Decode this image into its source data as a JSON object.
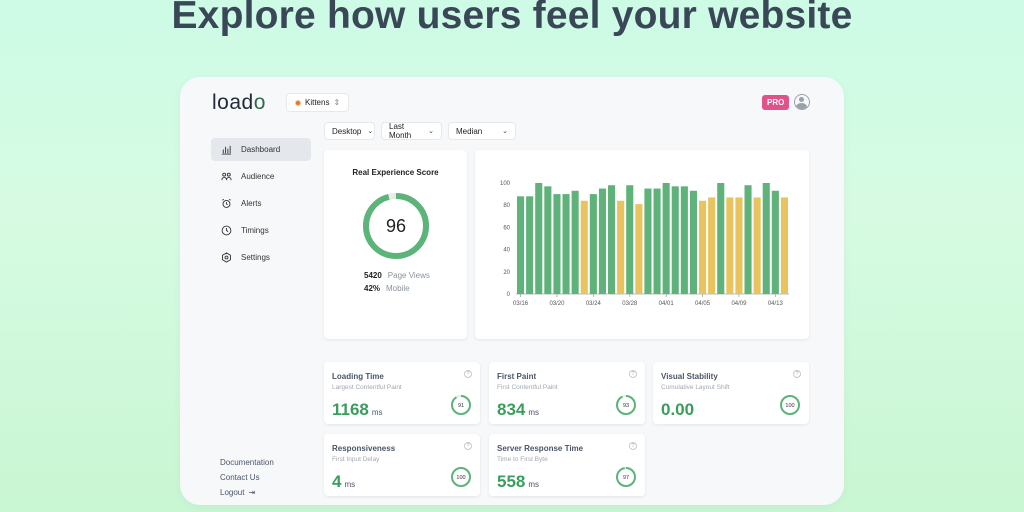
{
  "hero": {
    "title": "Explore how users feel your website"
  },
  "logo": {
    "text_a": "load",
    "text_b": "o"
  },
  "site": {
    "name": "Kittens"
  },
  "badge": {
    "pro": "PRO"
  },
  "filters": [
    "Desktop",
    "Last Month",
    "Median"
  ],
  "sidebar": {
    "items": [
      {
        "label": "Dashboard",
        "icon": "bar-chart-icon"
      },
      {
        "label": "Audience",
        "icon": "users-icon"
      },
      {
        "label": "Alerts",
        "icon": "alarm-icon"
      },
      {
        "label": "Timings",
        "icon": "clock-icon"
      },
      {
        "label": "Settings",
        "icon": "gear-icon"
      }
    ],
    "footer": [
      "Documentation",
      "Contact Us",
      "Logout"
    ]
  },
  "score": {
    "title": "Real Experience Score",
    "value": 96,
    "stats": [
      {
        "value": "5420",
        "label": "Page Views"
      },
      {
        "value": "42%",
        "label": "Mobile"
      }
    ]
  },
  "colors": {
    "good": "#5fb37a",
    "medium": "#e9c45e",
    "ring_track": "#e8ece9",
    "ring_good": "#5cb47b",
    "ring_medium": "#e5b94b"
  },
  "chart_data": {
    "type": "bar",
    "y_ticks": [
      0,
      20,
      40,
      60,
      80,
      100
    ],
    "ylim": [
      0,
      100
    ],
    "x_tick_labels": [
      "03/16",
      "03/20",
      "03/24",
      "03/28",
      "04/01",
      "04/05",
      "04/09",
      "04/13"
    ],
    "values": [
      88,
      88,
      100,
      97,
      90,
      90,
      93,
      84,
      90,
      95,
      98,
      84,
      98,
      81,
      95,
      95,
      100,
      97,
      97,
      93,
      84,
      87,
      100,
      87,
      87,
      98,
      87,
      100,
      93,
      87
    ],
    "category": [
      "g",
      "g",
      "g",
      "g",
      "g",
      "g",
      "g",
      "y",
      "g",
      "g",
      "g",
      "y",
      "g",
      "y",
      "g",
      "g",
      "g",
      "g",
      "g",
      "g",
      "y",
      "y",
      "g",
      "y",
      "y",
      "g",
      "y",
      "g",
      "g",
      "y"
    ]
  },
  "metrics": [
    {
      "title": "Loading Time",
      "subtitle": "Largest Contentful Paint",
      "value": "1168",
      "unit": "ms",
      "score": 91
    },
    {
      "title": "First Paint",
      "subtitle": "First Contentful Paint",
      "value": "834",
      "unit": "ms",
      "score": 93
    },
    {
      "title": "Visual Stability",
      "subtitle": "Cumulative Layout Shift",
      "value": "0.00",
      "unit": "",
      "score": 100
    },
    {
      "title": "Responsiveness",
      "subtitle": "First Input Delay",
      "value": "4",
      "unit": "ms",
      "score": 100
    },
    {
      "title": "Server Response Time",
      "subtitle": "Time to First Byte",
      "value": "558",
      "unit": "ms",
      "score": 97
    }
  ]
}
